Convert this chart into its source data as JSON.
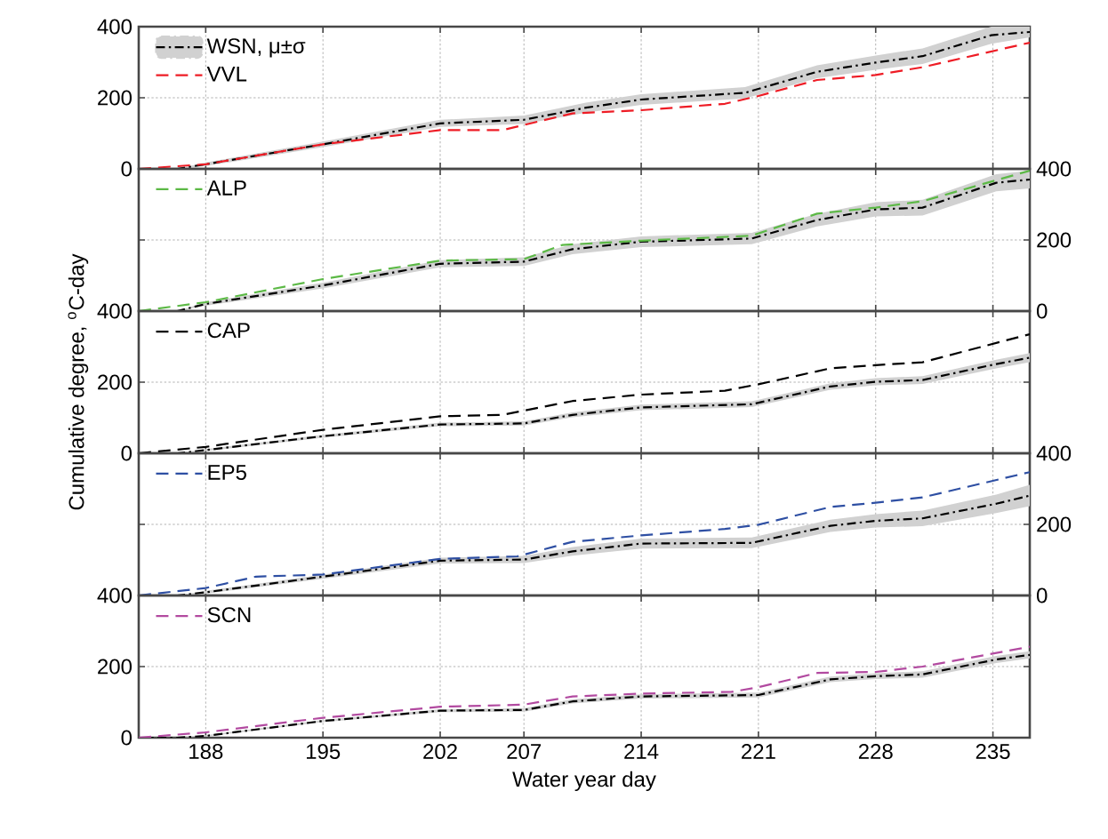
{
  "chart_data": [
    {
      "type": "line",
      "xlim": [
        184,
        237.2
      ],
      "ylim": [
        0,
        400
      ],
      "yticks": [
        0,
        200,
        400
      ],
      "grid": true,
      "legend": "top left",
      "tick_labels": "y",
      "xticks": [
        188,
        195,
        202,
        207,
        214,
        221,
        228,
        235
      ],
      "series": [
        {
          "name": "WSN, μ±σ",
          "color": "#000000",
          "line_style": "dashdot",
          "x": [
            184,
            186.3,
            188,
            195,
            202,
            207,
            210.7,
            214,
            220.2,
            224.5,
            228,
            230.8,
            234.9,
            237.2
          ],
          "values": [
            0,
            0,
            13,
            69,
            128,
            138,
            172,
            195,
            214,
            273,
            299,
            317,
            376,
            385
          ],
          "lower": [
            0,
            0,
            8,
            61,
            118,
            126,
            158,
            180,
            198,
            255,
            279,
            295,
            352,
            370
          ],
          "upper": [
            0,
            0,
            18,
            77,
            138,
            150,
            186,
            210,
            230,
            291,
            319,
            339,
            400,
            400
          ]
        },
        {
          "name": "VVL",
          "color": "#ee1c25",
          "line_style": "dashed",
          "x": [
            184,
            188,
            195,
            202,
            205.7,
            209.9,
            214,
            219,
            221,
            224.5,
            228,
            230.8,
            237.2
          ],
          "values": [
            0,
            13,
            69,
            109,
            109,
            156,
            165,
            183,
            205,
            250,
            264,
            286,
            355
          ]
        }
      ]
    },
    {
      "type": "line",
      "xlim": [
        184,
        237.2
      ],
      "ylim": [
        0,
        400
      ],
      "yticks": [
        0,
        200,
        400
      ],
      "grid": true,
      "legend": "top left",
      "tick_labels": "y",
      "xticks": [
        188,
        195,
        202,
        207,
        214,
        221,
        228,
        235
      ],
      "series": [
        {
          "color": "#000000",
          "line_style": "dashdot",
          "x": [
            184,
            186.3,
            188,
            195,
            202,
            207,
            209.9,
            214,
            220.6,
            224.5,
            228,
            230.8,
            235.2,
            237.2
          ],
          "values": [
            0,
            0,
            20,
            72,
            133,
            139,
            174,
            195,
            204,
            256,
            286,
            291,
            361,
            370
          ],
          "lower": [
            0,
            0,
            15,
            64,
            123,
            127,
            160,
            180,
            188,
            238,
            266,
            269,
            337,
            345
          ],
          "upper": [
            0,
            0,
            25,
            80,
            143,
            151,
            188,
            210,
            220,
            274,
            306,
            313,
            385,
            395
          ]
        },
        {
          "name": "ALP",
          "color": "#5cb946",
          "line_style": "dashed",
          "x": [
            184,
            188,
            195,
            202,
            207,
            209.3,
            214,
            220.6,
            224.5,
            228,
            230.8,
            237.2
          ],
          "values": [
            0,
            25,
            90,
            142,
            146,
            186,
            198,
            212,
            274,
            291,
            309,
            395
          ]
        }
      ]
    },
    {
      "type": "line",
      "xlim": [
        184,
        237.2
      ],
      "ylim": [
        0,
        400
      ],
      "yticks": [
        0,
        200,
        400
      ],
      "grid": true,
      "legend": "top left",
      "tick_labels": "y",
      "ylabel": "Cumulative degree, $^{o}$C-day",
      "xticks": [
        188,
        195,
        202,
        207,
        214,
        221,
        228,
        235
      ],
      "series": [
        {
          "color": "#000000",
          "line_style": "dashdot",
          "x": [
            184,
            186.3,
            188,
            195,
            202,
            207,
            209.9,
            214,
            220.6,
            225.3,
            228,
            230.8,
            235.2,
            237.2
          ],
          "values": [
            0,
            0,
            9,
            48,
            81,
            84,
            108,
            129,
            138,
            188,
            201,
            206,
            251,
            269
          ],
          "lower": [
            0,
            0,
            6,
            44,
            76,
            78,
            101,
            121,
            130,
            179,
            191,
            195,
            239,
            256
          ],
          "upper": [
            0,
            0,
            12,
            52,
            86,
            90,
            115,
            137,
            146,
            197,
            211,
            217,
            263,
            282
          ]
        },
        {
          "name": "CAP",
          "color": "#000000",
          "line_style": "dashed",
          "x": [
            184,
            188,
            195,
            202,
            205.7,
            209.9,
            214,
            219,
            221,
            225.3,
            228,
            230.8,
            237.2
          ],
          "values": [
            0,
            18,
            66,
            104,
            108,
            147,
            165,
            176,
            194,
            239,
            248,
            256,
            335
          ]
        }
      ]
    },
    {
      "type": "line",
      "xlim": [
        184,
        237.2
      ],
      "ylim": [
        0,
        400
      ],
      "yticks": [
        0,
        200,
        400
      ],
      "grid": true,
      "legend": "top left",
      "tick_labels": "y",
      "xticks": [
        188,
        195,
        202,
        207,
        214,
        221,
        228,
        235
      ],
      "series": [
        {
          "color": "#000000",
          "line_style": "dashdot",
          "x": [
            184,
            186.3,
            188,
            195,
            202,
            207,
            209.9,
            214,
            220.6,
            225.3,
            228,
            230.8,
            235.2,
            237.2
          ],
          "values": [
            0,
            0,
            9,
            53,
            98,
            101,
            124,
            146,
            148,
            196,
            210,
            217,
            258,
            281
          ],
          "lower": [
            0,
            0,
            5,
            47,
            90,
            91,
            112,
            132,
            133,
            179,
            191,
            195,
            232,
            251
          ],
          "upper": [
            0,
            0,
            13,
            59,
            106,
            111,
            136,
            160,
            163,
            213,
            229,
            239,
            284,
            311
          ]
        },
        {
          "name": "EP5",
          "color": "#2e4fa3",
          "line_style": "dashed",
          "x": [
            184,
            188,
            191,
            195,
            202,
            206.6,
            209.9,
            214,
            219,
            221,
            225.3,
            228,
            230.8,
            237.2
          ],
          "values": [
            0,
            21,
            53,
            59,
            103,
            110,
            151,
            169,
            187,
            199,
            249,
            261,
            276,
            347
          ]
        }
      ]
    },
    {
      "type": "line",
      "xlim": [
        184,
        237.2
      ],
      "ylim": [
        0,
        400
      ],
      "yticks": [
        0,
        200,
        400
      ],
      "grid": true,
      "legend": "top left",
      "xlabel": "Water year day",
      "xticks": [
        188,
        195,
        202,
        207,
        214,
        221,
        228,
        235
      ],
      "series": [
        {
          "color": "#000000",
          "line_style": "dashdot",
          "x": [
            184,
            186.3,
            188,
            195,
            202,
            207,
            209.9,
            214,
            221,
            225.3,
            228,
            230.8,
            235.2,
            237.2
          ],
          "values": [
            0,
            0,
            5,
            47,
            76,
            78,
            102,
            116,
            120,
            164,
            173,
            178,
            220,
            233
          ],
          "lower": [
            0,
            0,
            3,
            44,
            72,
            73,
            96,
            110,
            113,
            156,
            165,
            169,
            210,
            223
          ],
          "upper": [
            0,
            0,
            7,
            50,
            80,
            83,
            108,
            122,
            127,
            172,
            181,
            187,
            230,
            243
          ]
        },
        {
          "name": "SCN",
          "color": "#b24aa0",
          "line_style": "dashed",
          "x": [
            184,
            188,
            195,
            202,
            207,
            209.9,
            214,
            219.4,
            221,
            224.5,
            228,
            230.8,
            237.2
          ],
          "values": [
            0,
            15,
            56,
            87,
            93,
            116,
            124,
            129,
            142,
            182,
            185,
            200,
            256
          ]
        }
      ]
    }
  ]
}
